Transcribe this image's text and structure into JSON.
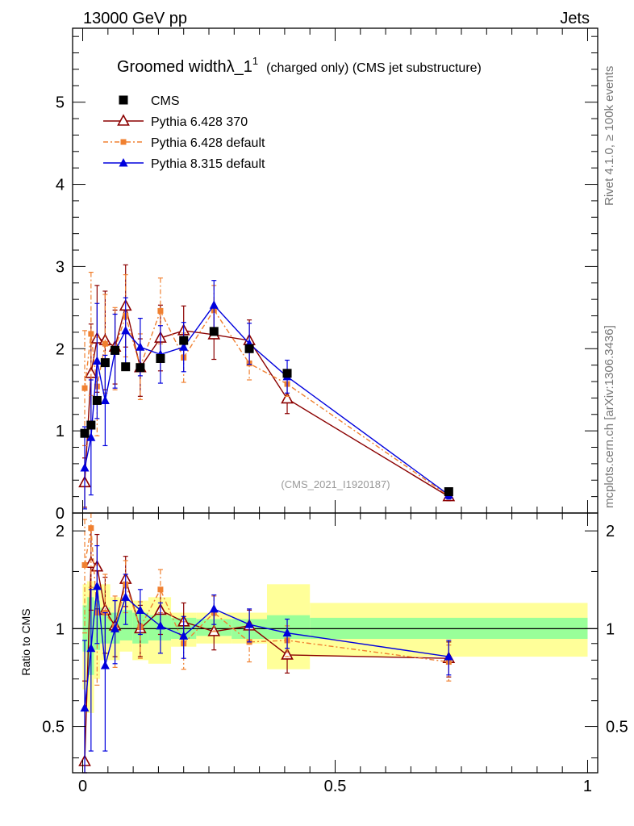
{
  "header": {
    "left": "13000 GeV pp",
    "right": "Jets"
  },
  "side_labels": {
    "top": "Rivet 4.1.0, ≥ 100k events",
    "bottom": "mcplots.cern.ch [arXiv:1306.3436]"
  },
  "colors": {
    "cms": "#000000",
    "p6_370": "#8b0000",
    "p6_default": "#f08030",
    "p8": "#0000dd",
    "band_inner": "#99ff99",
    "band_outer": "#ffff99"
  },
  "chart_data": [
    {
      "type": "line",
      "title_main": "Groomed widthλ_1",
      "title_sup": "1",
      "title_sub": "(charged only) (CMS jet substructure)",
      "watermark": "(CMS_2021_I1920187)",
      "xlim": [
        -0.02,
        1.02
      ],
      "ylim": [
        0,
        5.9
      ],
      "yticks": [
        {
          "v": 0,
          "label": "0"
        },
        {
          "v": 1,
          "label": "1"
        },
        {
          "v": 2,
          "label": "2"
        },
        {
          "v": 3,
          "label": "3"
        },
        {
          "v": 4,
          "label": "4"
        },
        {
          "v": 5,
          "label": "5"
        }
      ],
      "legend": [
        {
          "key": "cms",
          "label": "CMS"
        },
        {
          "key": "p6_370",
          "label": "Pythia 6.428 370"
        },
        {
          "key": "p6_default",
          "label": "Pythia 6.428 default"
        },
        {
          "key": "p8",
          "label": "Pythia 8.315 default"
        }
      ],
      "series": [
        {
          "key": "cms",
          "name": "CMS",
          "marker": "square",
          "x": [
            0.004,
            0.0165,
            0.0285,
            0.0445,
            0.064,
            0.085,
            0.114,
            0.154,
            0.2,
            0.26,
            0.33,
            0.405,
            0.725
          ],
          "y": [
            0.97,
            1.07,
            1.37,
            1.83,
            1.98,
            1.78,
            1.77,
            1.88,
            2.1,
            2.21,
            2.0,
            1.7,
            0.26
          ],
          "err": [
            0,
            0,
            0,
            0,
            0,
            0,
            0,
            0,
            0,
            0,
            0,
            0,
            0
          ]
        },
        {
          "key": "p6_370",
          "name": "Pythia 6.428 370",
          "marker": "triangle-open",
          "dash": "",
          "x": [
            0.004,
            0.0165,
            0.0285,
            0.0445,
            0.064,
            0.085,
            0.114,
            0.154,
            0.2,
            0.26,
            0.33,
            0.405,
            0.725
          ],
          "y": [
            0.37,
            1.7,
            2.12,
            2.1,
            2.02,
            2.52,
            1.77,
            2.13,
            2.22,
            2.17,
            2.1,
            1.39,
            0.2
          ],
          "err": [
            0.3,
            0.6,
            0.65,
            0.6,
            0.45,
            0.5,
            0.35,
            0.4,
            0.3,
            0.3,
            0.25,
            0.18,
            0.05
          ]
        },
        {
          "key": "p6_default",
          "name": "Pythia 6.428 default",
          "marker": "square-small",
          "dash": "6,3,2,3",
          "x": [
            0.004,
            0.0165,
            0.0285,
            0.0445,
            0.064,
            0.085,
            0.114,
            0.154,
            0.2,
            0.26,
            0.33,
            0.405,
            0.725
          ],
          "y": [
            1.52,
            2.18,
            1.54,
            2.06,
            2.0,
            2.4,
            1.78,
            2.46,
            1.89,
            2.47,
            1.82,
            1.57,
            0.21
          ],
          "err": [
            0.7,
            0.75,
            0.6,
            0.6,
            0.5,
            0.5,
            0.4,
            0.4,
            0.3,
            0.3,
            0.2,
            0.15,
            0.04
          ]
        },
        {
          "key": "p8",
          "name": "Pythia 8.315 default",
          "marker": "triangle-filled",
          "dash": "",
          "x": [
            0.004,
            0.0165,
            0.0285,
            0.0445,
            0.064,
            0.085,
            0.114,
            0.154,
            0.2,
            0.26,
            0.33,
            0.405,
            0.725
          ],
          "y": [
            0.55,
            0.92,
            1.85,
            1.37,
            1.97,
            2.22,
            2.02,
            1.93,
            2.02,
            2.53,
            2.06,
            1.66,
            0.22
          ],
          "err": [
            0.5,
            0.7,
            0.7,
            0.55,
            0.45,
            0.4,
            0.35,
            0.35,
            0.3,
            0.3,
            0.25,
            0.2,
            0.05
          ]
        }
      ]
    },
    {
      "type": "line",
      "ylabel": "Ratio to CMS",
      "xlim": [
        -0.02,
        1.02
      ],
      "ylim": [
        0.36,
        2.27
      ],
      "ylog": true,
      "yticks": [
        {
          "v": 0.5,
          "label": "0.5"
        },
        {
          "v": 1,
          "label": "1"
        },
        {
          "v": 2,
          "label": "2"
        }
      ],
      "xticks": [
        {
          "v": 0,
          "label": "0"
        },
        {
          "v": 0.5,
          "label": "0.5"
        },
        {
          "v": 1,
          "label": "1"
        }
      ],
      "bins": [
        0,
        0.0085,
        0.0225,
        0.0345,
        0.0545,
        0.0735,
        0.0985,
        0.13,
        0.175,
        0.225,
        0.295,
        0.365,
        0.45,
        1.0
      ],
      "band_inner": [
        [
          0.85,
          1.18
        ],
        [
          0.72,
          1.25
        ],
        [
          0.86,
          1.22
        ],
        [
          0.9,
          1.16
        ],
        [
          0.9,
          1.12
        ],
        [
          0.92,
          1.14
        ],
        [
          0.9,
          1.12
        ],
        [
          0.92,
          1.1
        ],
        [
          0.93,
          1.08
        ],
        [
          0.95,
          1.07
        ],
        [
          0.93,
          1.07
        ],
        [
          0.93,
          1.1
        ],
        [
          0.93,
          1.08
        ]
      ],
      "band_outer": [
        [
          0.65,
          1.37
        ],
        [
          0.55,
          1.4
        ],
        [
          0.7,
          1.37
        ],
        [
          0.8,
          1.37
        ],
        [
          0.8,
          1.25
        ],
        [
          0.85,
          1.23
        ],
        [
          0.8,
          1.22
        ],
        [
          0.78,
          1.25
        ],
        [
          0.88,
          1.12
        ],
        [
          0.9,
          1.12
        ],
        [
          0.9,
          1.12
        ],
        [
          0.75,
          1.37
        ],
        [
          0.82,
          1.2
        ]
      ],
      "series": [
        {
          "key": "p6_370",
          "marker": "triangle-open",
          "dash": "",
          "x": [
            0.004,
            0.0165,
            0.0285,
            0.0445,
            0.064,
            0.085,
            0.114,
            0.154,
            0.2,
            0.26,
            0.33,
            0.405,
            0.725
          ],
          "y": [
            0.39,
            1.59,
            1.55,
            1.14,
            1.02,
            1.42,
            1.0,
            1.14,
            1.05,
            0.98,
            1.02,
            0.83,
            0.81
          ],
          "err": [
            0.3,
            0.45,
            0.4,
            0.3,
            0.2,
            0.25,
            0.18,
            0.18,
            0.15,
            0.12,
            0.12,
            0.1,
            0.1
          ]
        },
        {
          "key": "p6_default",
          "marker": "square-small",
          "dash": "6,3,2,3",
          "x": [
            0.004,
            0.0165,
            0.0285,
            0.0445,
            0.064,
            0.085,
            0.114,
            0.154,
            0.2,
            0.26,
            0.33,
            0.405,
            0.725
          ],
          "y": [
            1.57,
            2.04,
            1.12,
            1.12,
            1.01,
            1.37,
            1.01,
            1.32,
            0.9,
            1.12,
            0.91,
            0.92,
            0.79
          ],
          "err": [
            0.6,
            0.7,
            0.45,
            0.35,
            0.25,
            0.25,
            0.2,
            0.2,
            0.15,
            0.14,
            0.12,
            0.1,
            0.1
          ]
        },
        {
          "key": "p8",
          "marker": "triangle-filled",
          "dash": "",
          "x": [
            0.004,
            0.0165,
            0.0285,
            0.0445,
            0.064,
            0.085,
            0.114,
            0.154,
            0.2,
            0.26,
            0.33,
            0.405,
            0.725
          ],
          "y": [
            0.57,
            0.87,
            1.35,
            0.77,
            1.0,
            1.25,
            1.14,
            1.02,
            0.95,
            1.15,
            1.03,
            0.97,
            0.82
          ],
          "err": [
            0.35,
            0.45,
            0.45,
            0.35,
            0.22,
            0.22,
            0.18,
            0.18,
            0.14,
            0.12,
            0.12,
            0.1,
            0.1
          ]
        }
      ]
    }
  ]
}
